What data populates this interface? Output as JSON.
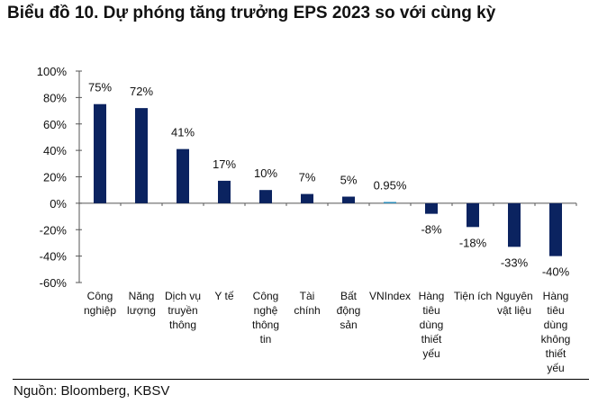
{
  "chart_data": {
    "type": "bar",
    "title": "Biểu đồ 10. Dự phóng tăng trưởng EPS 2023 so với cùng kỳ",
    "xlabel": "",
    "ylabel": "",
    "ylim": [
      -60,
      100
    ],
    "yticks": [
      100,
      80,
      60,
      40,
      20,
      0,
      -20,
      -40,
      -60
    ],
    "ytick_labels": [
      "100%",
      "80%",
      "60%",
      "40%",
      "20%",
      "0%",
      "-20%",
      "-40%",
      "-60%"
    ],
    "categories": [
      [
        "Công",
        "nghiệp"
      ],
      [
        "Năng",
        "lượng"
      ],
      [
        "Dịch vụ",
        "truyền",
        "thông"
      ],
      [
        "Y tế"
      ],
      [
        "Công",
        "nghệ",
        "thông",
        "tin"
      ],
      [
        "Tài",
        "chính"
      ],
      [
        "Bất",
        "động",
        "sản"
      ],
      [
        "VNIndex"
      ],
      [
        "Hàng",
        "tiêu",
        "dùng",
        "thiết",
        "yếu"
      ],
      [
        "Tiện ích"
      ],
      [
        "Nguyên",
        "vật liệu"
      ],
      [
        "Hàng",
        "tiêu",
        "dùng",
        "không",
        "thiết",
        "yếu"
      ]
    ],
    "values": [
      75,
      72,
      41,
      17,
      10,
      7,
      5,
      0.95,
      -8,
      -18,
      -33,
      -40
    ],
    "data_labels": [
      "75%",
      "72%",
      "41%",
      "17%",
      "10%",
      "7%",
      "5%",
      "0.95%",
      "-8%",
      "-18%",
      "-33%",
      "-40%"
    ],
    "colors": {
      "bar": "#0b2360",
      "highlight": "#2a8ab8",
      "axis": "#555555"
    },
    "highlight_index": 7,
    "grid": false,
    "legend": "none"
  },
  "source": "Nguồn: Bloomberg, KBSV"
}
